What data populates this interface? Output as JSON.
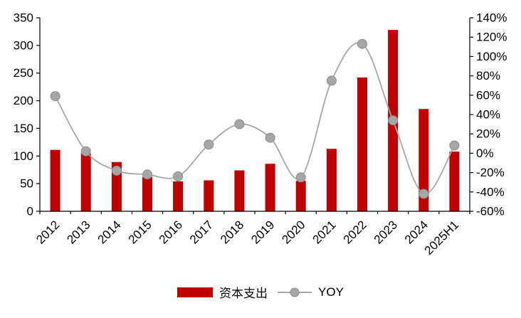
{
  "chart_data": {
    "type": "bar",
    "combo": "bar+line",
    "categories": [
      "2012",
      "2013",
      "2014",
      "2015",
      "2016",
      "2017",
      "2018",
      "2019",
      "2020",
      "2021",
      "2022",
      "2023",
      "2024",
      "2025H1"
    ],
    "series": [
      {
        "name": "资本支出",
        "chart_type": "bar",
        "axis": "left",
        "color": "#c00000",
        "values": [
          111,
          105,
          89,
          62,
          54,
          56,
          74,
          86,
          55,
          113,
          242,
          328,
          185,
          108
        ]
      },
      {
        "name": "YOY",
        "chart_type": "line",
        "axis": "right",
        "color": "#a6a6a6",
        "marker": "circle",
        "marker_stroke": "#8c8c8c",
        "smooth": true,
        "values": [
          59,
          2,
          -18,
          -22,
          -24,
          9,
          30,
          16,
          -25,
          75,
          113,
          34,
          -42,
          8
        ]
      }
    ],
    "left_axis": {
      "min": 0,
      "max": 350,
      "step": 50,
      "tick_labels": [
        "350",
        "300",
        "250",
        "200",
        "150",
        "100",
        "50",
        "0"
      ]
    },
    "right_axis": {
      "min": -60,
      "max": 140,
      "step": 20,
      "unit": "%",
      "tick_labels": [
        "140%",
        "120%",
        "100%",
        "80%",
        "60%",
        "40%",
        "20%",
        "0%",
        "-20%",
        "-40%",
        "-60%"
      ]
    },
    "grid": false,
    "legend_position": "bottom",
    "axis_color": "#000000",
    "text_color": "#000000"
  }
}
